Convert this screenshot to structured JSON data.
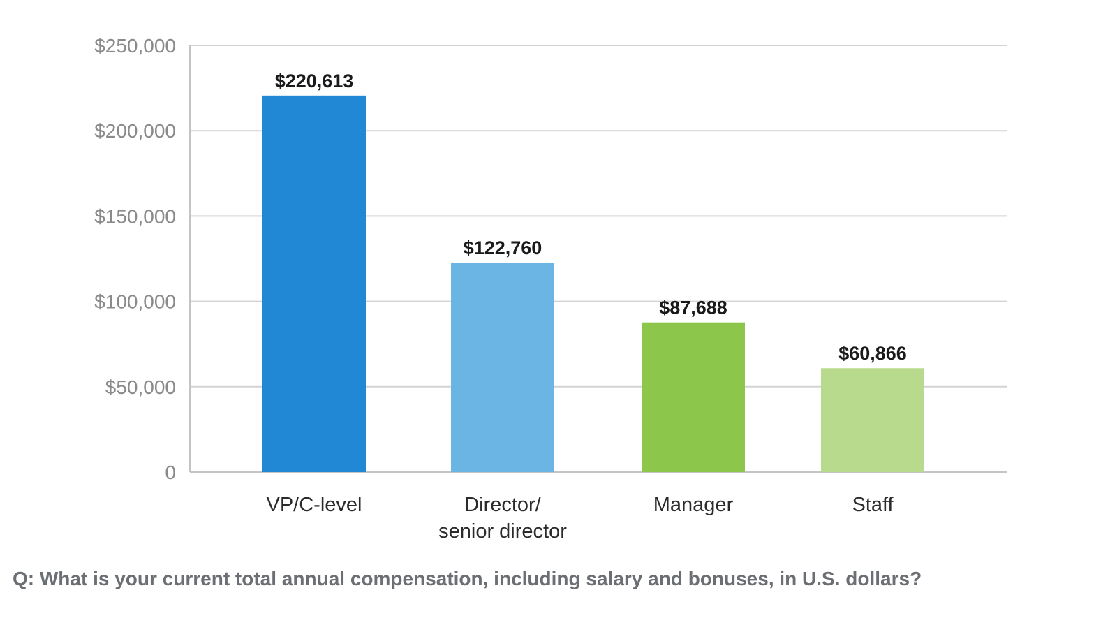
{
  "chart_data": {
    "type": "bar",
    "title": "",
    "xlabel": "",
    "ylabel": "",
    "categories": [
      [
        "VP/C-level"
      ],
      [
        "Director/",
        "senior director"
      ],
      [
        "Manager"
      ],
      [
        "Staff"
      ]
    ],
    "values": [
      220613,
      122760,
      87688,
      60866
    ],
    "data_labels": [
      "$220,613",
      "$122,760",
      "$87,688",
      "$60,866"
    ],
    "bar_colors": [
      "#2088d4",
      "#6bb5e4",
      "#8cc64a",
      "#b8da8c"
    ],
    "ylim": [
      0,
      250000
    ],
    "yticks": [
      0,
      50000,
      100000,
      150000,
      200000,
      250000
    ],
    "ytick_labels": [
      "0",
      "$50,000",
      "$100,000",
      "$150,000",
      "$200,000",
      "$250,000"
    ],
    "grid": true,
    "legend": "none"
  },
  "footer": {
    "question": "Q: What is your current total annual compensation, including salary and bonuses, in U.S. dollars?"
  }
}
